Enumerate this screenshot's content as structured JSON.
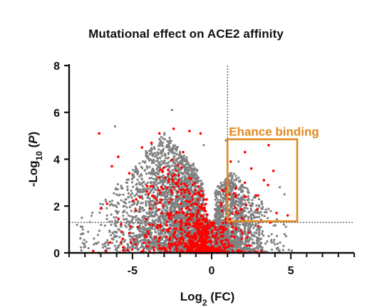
{
  "chart_data": {
    "type": "scatter",
    "title": "Mutational effect on ACE2 affinity",
    "xlabel": {
      "main": "Log",
      "sub": "2",
      "rest": " (FC)"
    },
    "ylabel": {
      "main": "-Log",
      "sub": "10",
      "rest": " (",
      "italic": "P",
      "close": ")"
    },
    "xlim": [
      -9,
      9
    ],
    "ylim": [
      0,
      8
    ],
    "xticks": [
      -5,
      0,
      5
    ],
    "yticks": [
      0,
      2,
      4,
      6,
      8
    ],
    "xtick_labels": [
      "-5",
      "0",
      "5"
    ],
    "ytick_labels": [
      "0",
      "2",
      "4",
      "6",
      "8"
    ],
    "x_minor_step": 1,
    "vertical_threshold_x": 1,
    "horizontal_threshold_y": 1.3,
    "center_reference_x": 1,
    "series": [
      {
        "color": "#808080"
      },
      {
        "color": "#ff0000"
      }
    ],
    "annotation": {
      "text": "Ehance binding",
      "color": "#e08a1e",
      "box": {
        "x0": 1,
        "x1": 5.4,
        "y0": 1.35,
        "y1": 4.85
      }
    },
    "highlight_points": [
      {
        "x": -7.1,
        "y": 5.1
      },
      {
        "x": -6.3,
        "y": 3.7
      },
      {
        "x": -5.9,
        "y": 4.1
      },
      {
        "x": -5.2,
        "y": 3.4
      },
      {
        "x": -4.4,
        "y": 4.5
      },
      {
        "x": -3.8,
        "y": 4.7
      },
      {
        "x": -3.3,
        "y": 5.1
      },
      {
        "x": -2.4,
        "y": 5.3
      },
      {
        "x": -1.4,
        "y": 5.2
      },
      {
        "x": -0.7,
        "y": 5.1
      },
      {
        "x": -1.8,
        "y": 4.3
      },
      {
        "x": -6.6,
        "y": 2.1
      },
      {
        "x": -7.0,
        "y": 1.9
      },
      {
        "x": -0.2,
        "y": 0.1
      },
      {
        "x": 0.0,
        "y": 0.2
      },
      {
        "x": 0.3,
        "y": 0.1
      },
      {
        "x": 1.2,
        "y": 3.9
      },
      {
        "x": 2.1,
        "y": 4.3
      },
      {
        "x": 2.5,
        "y": 3.6
      },
      {
        "x": 3.6,
        "y": 4.6
      },
      {
        "x": 3.9,
        "y": 3.5
      },
      {
        "x": 3.3,
        "y": 3.1
      },
      {
        "x": 4.1,
        "y": 1.7
      },
      {
        "x": 3.7,
        "y": 1.3
      },
      {
        "x": 4.8,
        "y": 1.6
      },
      {
        "x": -0.9,
        "y": 1.4
      },
      {
        "x": 1.5,
        "y": 2.4
      }
    ],
    "point_density_note": "thousands of mutant points; grey = all mutations, red = highlighted subset"
  }
}
